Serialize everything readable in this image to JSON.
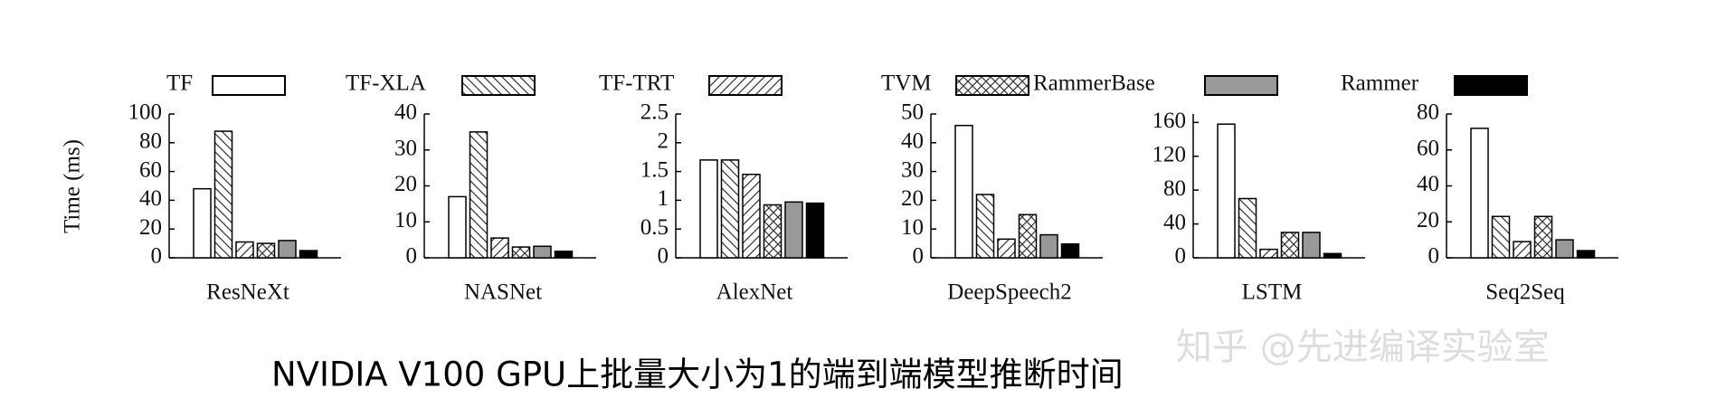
{
  "chart_data": {
    "type": "bar",
    "ylabel": "Time (ms)",
    "series": [
      {
        "name": "TF",
        "color": "#ffffff",
        "pattern": "none"
      },
      {
        "name": "TF-XLA",
        "color": "#ffffff",
        "pattern": "backslash"
      },
      {
        "name": "TF-TRT",
        "color": "#ffffff",
        "pattern": "slash"
      },
      {
        "name": "TVM",
        "color": "#ffffff",
        "pattern": "cross"
      },
      {
        "name": "RammerBase",
        "color": "#999999",
        "pattern": "none"
      },
      {
        "name": "Rammer",
        "color": "#000000",
        "pattern": "none"
      }
    ],
    "panels": [
      {
        "xlabel": "ResNeXt",
        "ylim": [
          0,
          100
        ],
        "yticks": [
          0,
          20,
          40,
          60,
          80,
          100
        ],
        "values": [
          48,
          88,
          11,
          10,
          12,
          5
        ]
      },
      {
        "xlabel": "NASNet",
        "ylim": [
          0,
          40
        ],
        "yticks": [
          0,
          10,
          20,
          30,
          40
        ],
        "values": [
          17,
          35,
          5.5,
          3,
          3.2,
          1.8
        ]
      },
      {
        "xlabel": "AlexNet",
        "ylim": [
          0,
          2.5
        ],
        "yticks": [
          0,
          0.5,
          1,
          1.5,
          2,
          2.5
        ],
        "values": [
          1.7,
          1.7,
          1.45,
          0.92,
          0.97,
          0.95
        ]
      },
      {
        "xlabel": "DeepSpeech2",
        "ylim": [
          0,
          50
        ],
        "yticks": [
          0,
          10,
          20,
          30,
          40,
          50
        ],
        "values": [
          46,
          22,
          6.5,
          15,
          8,
          4.8
        ]
      },
      {
        "xlabel": "LSTM",
        "ylim": [
          0,
          170
        ],
        "yticks": [
          0,
          40,
          80,
          120,
          160
        ],
        "values": [
          158,
          70,
          10,
          30,
          30,
          5
        ]
      },
      {
        "xlabel": "Seq2Seq",
        "ylim": [
          0,
          80
        ],
        "yticks": [
          0,
          20,
          40,
          60,
          80
        ],
        "values": [
          72,
          23,
          9,
          23,
          10,
          4
        ]
      }
    ]
  },
  "caption": "NVIDIA V100 GPU上批量大小为1的端到端模型推断时间",
  "watermark": "知乎 @先进编译实验室"
}
